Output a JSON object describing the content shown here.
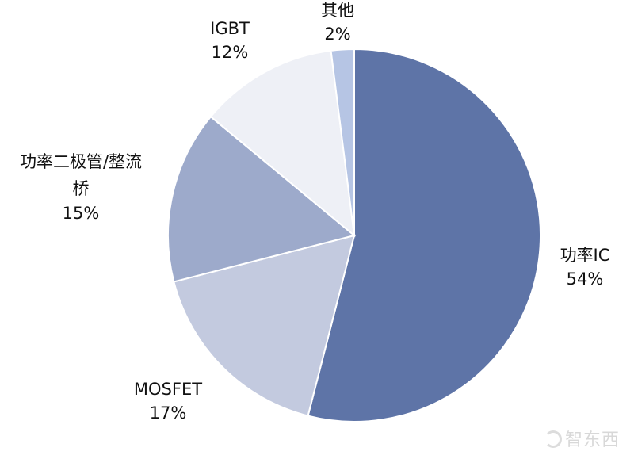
{
  "chart_data": {
    "type": "pie",
    "title": "",
    "start": "12 o'clock",
    "direction": "clockwise",
    "slices": [
      {
        "label": "功率IC",
        "value": 54,
        "value_label": "54%",
        "color": "#5e74a7"
      },
      {
        "label": "MOSFET",
        "value": 17,
        "value_label": "17%",
        "color": "#c3cadf"
      },
      {
        "label": "功率二极管/整流桥",
        "value": 15,
        "value_label": "15%",
        "color": "#9daacb"
      },
      {
        "label": "IGBT",
        "value": 12,
        "value_label": "12%",
        "color": "#eef0f6"
      },
      {
        "label": "其他",
        "value": 2,
        "value_label": "2%",
        "color": "#b6c5e4"
      }
    ]
  },
  "watermark": {
    "text": "智东西"
  }
}
